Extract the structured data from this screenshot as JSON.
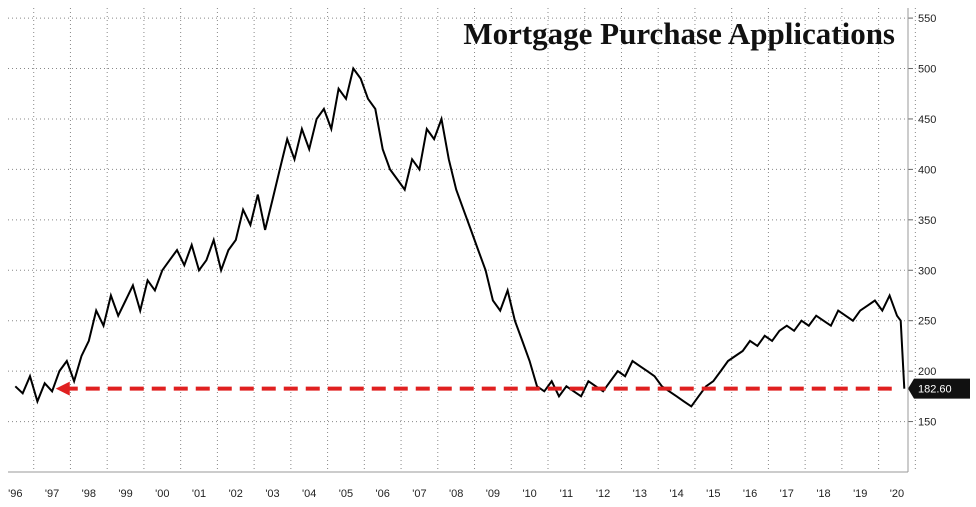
{
  "chart_data": {
    "type": "line",
    "title": "Mortgage Purchase Applications",
    "xlabel": "",
    "ylabel": "",
    "x_tick_labels": [
      "'96",
      "'97",
      "'98",
      "'99",
      "'00",
      "'01",
      "'02",
      "'03",
      "'04",
      "'05",
      "'06",
      "'07",
      "'08",
      "'09",
      "'10",
      "'11",
      "'12",
      "'13",
      "'14",
      "'15",
      "'16",
      "'17",
      "'18",
      "'19",
      "'20"
    ],
    "y_ticks": [
      150,
      200,
      250,
      300,
      350,
      400,
      450,
      500,
      550
    ],
    "ylim": [
      100,
      560
    ],
    "xlim": [
      1995.8,
      2020.3
    ],
    "grid": true,
    "series": [
      {
        "x": [
          1996.0,
          1996.2,
          1996.4,
          1996.6,
          1996.8,
          1997.0,
          1997.2,
          1997.4,
          1997.6,
          1997.8,
          1998.0,
          1998.2,
          1998.4,
          1998.6,
          1998.8,
          1999.0,
          1999.2,
          1999.4,
          1999.6,
          1999.8,
          2000.0,
          2000.2,
          2000.4,
          2000.6,
          2000.8,
          2001.0,
          2001.2,
          2001.4,
          2001.6,
          2001.8,
          2002.0,
          2002.2,
          2002.4,
          2002.6,
          2002.8,
          2003.0,
          2003.2,
          2003.4,
          2003.6,
          2003.8,
          2004.0,
          2004.2,
          2004.4,
          2004.6,
          2004.8,
          2005.0,
          2005.2,
          2005.4,
          2005.6,
          2005.8,
          2006.0,
          2006.2,
          2006.4,
          2006.6,
          2006.8,
          2007.0,
          2007.2,
          2007.4,
          2007.6,
          2007.8,
          2008.0,
          2008.2,
          2008.4,
          2008.6,
          2008.8,
          2009.0,
          2009.2,
          2009.4,
          2009.6,
          2009.8,
          2010.0,
          2010.2,
          2010.4,
          2010.6,
          2010.8,
          2011.0,
          2011.2,
          2011.4,
          2011.6,
          2011.8,
          2012.0,
          2012.2,
          2012.4,
          2012.6,
          2012.8,
          2013.0,
          2013.2,
          2013.4,
          2013.6,
          2013.8,
          2014.0,
          2014.2,
          2014.4,
          2014.6,
          2014.8,
          2015.0,
          2015.2,
          2015.4,
          2015.6,
          2015.8,
          2016.0,
          2016.2,
          2016.4,
          2016.6,
          2016.8,
          2017.0,
          2017.2,
          2017.4,
          2017.6,
          2017.8,
          2018.0,
          2018.2,
          2018.4,
          2018.6,
          2018.8,
          2019.0,
          2019.2,
          2019.4,
          2019.6,
          2019.8,
          2020.0,
          2020.1,
          2020.2
        ],
        "values": [
          185,
          178,
          195,
          170,
          188,
          180,
          200,
          210,
          190,
          215,
          230,
          260,
          245,
          275,
          255,
          270,
          285,
          260,
          290,
          280,
          300,
          310,
          320,
          305,
          325,
          300,
          310,
          330,
          300,
          320,
          330,
          360,
          345,
          375,
          340,
          370,
          400,
          430,
          410,
          440,
          420,
          450,
          460,
          440,
          480,
          470,
          500,
          490,
          470,
          460,
          420,
          400,
          390,
          380,
          410,
          400,
          440,
          430,
          450,
          410,
          380,
          360,
          340,
          320,
          300,
          270,
          260,
          280,
          250,
          230,
          210,
          185,
          180,
          190,
          175,
          185,
          180,
          175,
          190,
          185,
          180,
          190,
          200,
          195,
          210,
          205,
          200,
          195,
          185,
          180,
          175,
          170,
          165,
          175,
          185,
          190,
          200,
          210,
          215,
          220,
          230,
          225,
          235,
          230,
          240,
          245,
          240,
          250,
          245,
          255,
          250,
          245,
          260,
          255,
          250,
          260,
          265,
          270,
          260,
          275,
          255,
          250,
          182.6
        ],
        "last_value_label": "182.60",
        "color": "#000000"
      }
    ],
    "reference_line": {
      "y": 182.6,
      "from_x": 1997.1,
      "to_x": 2020.0,
      "style": "dashed-arrow",
      "color": "#e02020"
    },
    "legend": "none",
    "last_value_badge_color": "#111111"
  }
}
